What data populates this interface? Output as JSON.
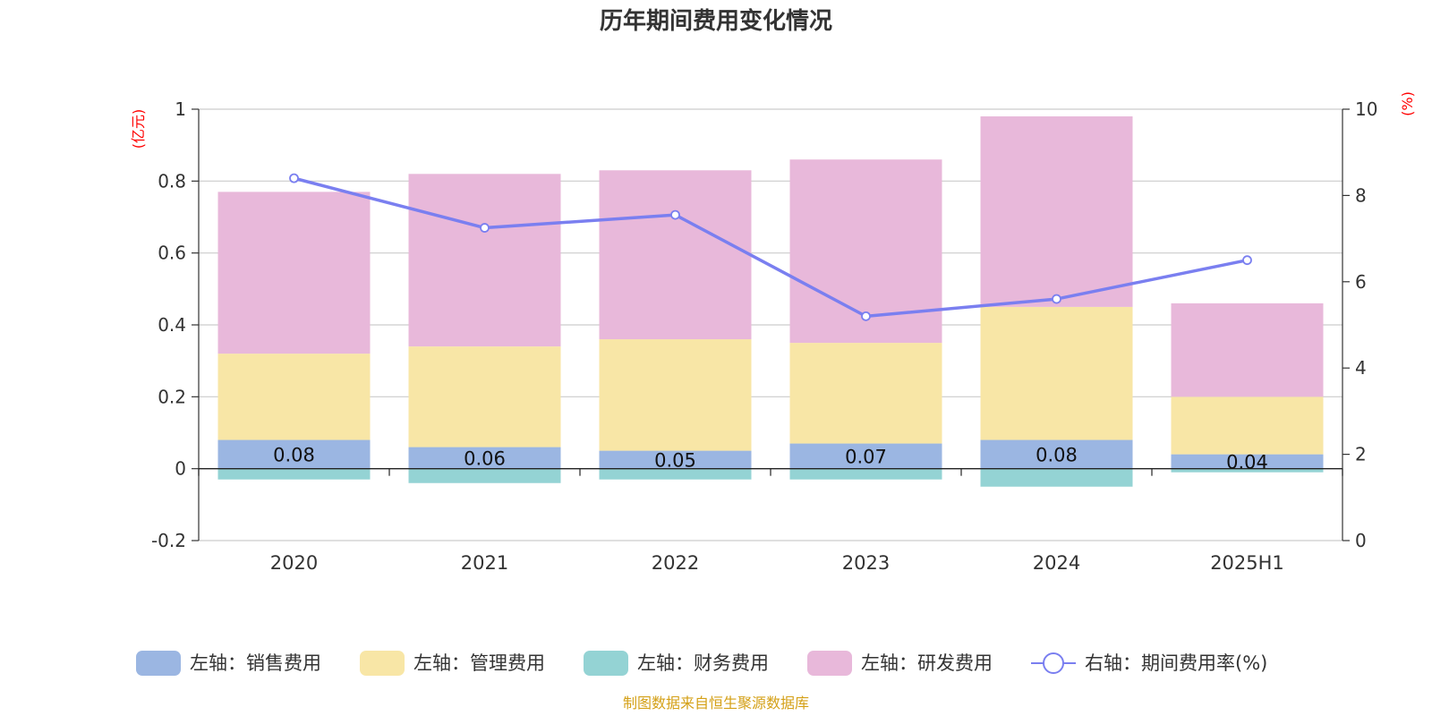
{
  "chart_data": {
    "type": "bar",
    "title": "历年期间费用变化情况",
    "categories": [
      "2020",
      "2021",
      "2022",
      "2023",
      "2024",
      "2025H1"
    ],
    "left_axis": {
      "unit": "(亿元)",
      "ylim": [
        -0.2,
        1
      ],
      "ticks": [
        -0.2,
        0,
        0.2,
        0.4,
        0.6,
        0.8,
        1
      ]
    },
    "right_axis": {
      "unit": "(%)",
      "ylim": [
        0,
        10
      ],
      "ticks": [
        0,
        2,
        4,
        6,
        8,
        10
      ]
    },
    "series": [
      {
        "name": "左轴：销售费用",
        "axis": "left",
        "type": "bar",
        "color": "#9bb6e2",
        "values": [
          0.08,
          0.06,
          0.05,
          0.07,
          0.08,
          0.04
        ],
        "labels": [
          "0.08",
          "0.06",
          "0.05",
          "0.07",
          "0.08",
          "0.04"
        ]
      },
      {
        "name": "左轴：管理费用",
        "axis": "left",
        "type": "bar",
        "color": "#f8e6a6",
        "values": [
          0.24,
          0.28,
          0.31,
          0.28,
          0.37,
          0.16
        ]
      },
      {
        "name": "左轴：财务费用",
        "axis": "left",
        "type": "bar",
        "color": "#94d3d4",
        "values": [
          -0.03,
          -0.04,
          -0.03,
          -0.03,
          -0.05,
          -0.01
        ]
      },
      {
        "name": "左轴：研发费用",
        "axis": "left",
        "type": "bar",
        "color": "#e8b8da",
        "values": [
          0.45,
          0.48,
          0.47,
          0.51,
          0.53,
          0.26
        ]
      },
      {
        "name": "右轴：期间费用率(%)",
        "axis": "right",
        "type": "line",
        "color": "#7a7ff0",
        "values": [
          8.4,
          7.25,
          7.55,
          5.2,
          5.6,
          6.5
        ]
      }
    ],
    "grid": true,
    "legend_position": "bottom"
  },
  "source": "制图数据来自恒生聚源数据库"
}
